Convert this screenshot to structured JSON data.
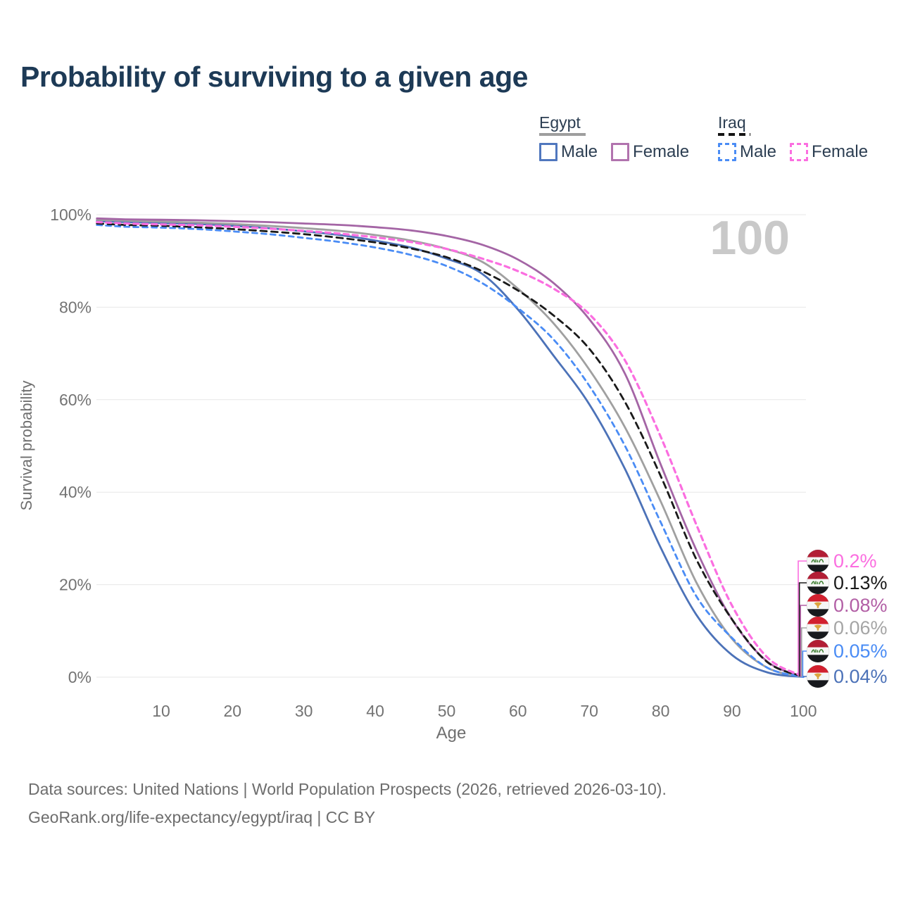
{
  "title": "Probability of surviving to a given age",
  "watermark": "100",
  "legend": {
    "groups": [
      {
        "name": "Egypt",
        "line_style": "solid",
        "underline_color": "#9e9e9e",
        "items": [
          {
            "label": "Male",
            "color": "#5077be"
          },
          {
            "label": "Female",
            "color": "#b173ae"
          }
        ]
      },
      {
        "name": "Iraq",
        "line_style": "dashed",
        "underline_color": "#141414",
        "items": [
          {
            "label": "Male",
            "color": "#4a8cf5"
          },
          {
            "label": "Female",
            "color": "#fb6ee0"
          }
        ]
      }
    ]
  },
  "chart_data": {
    "type": "line",
    "title": "Probability of surviving to a given age",
    "xlabel": "Age",
    "ylabel": "Survival probability",
    "xlim": [
      0,
      100
    ],
    "ylim": [
      0,
      100
    ],
    "grid": true,
    "x_ticks": [
      10,
      20,
      30,
      40,
      50,
      60,
      70,
      80,
      90,
      100
    ],
    "y_ticks": [
      "0%",
      "20%",
      "40%",
      "60%",
      "80%",
      "100%"
    ],
    "ages": [
      1,
      5,
      10,
      15,
      20,
      25,
      30,
      35,
      40,
      45,
      50,
      55,
      60,
      65,
      70,
      75,
      80,
      85,
      90,
      95,
      100
    ],
    "series": [
      {
        "id": "egypt_male",
        "name": "Egypt Male",
        "country": "Egypt",
        "sex": "Male",
        "color": "#4c72b8",
        "dash": "solid",
        "values": [
          98.6,
          98.4,
          98.2,
          98.0,
          97.6,
          97.1,
          96.4,
          95.6,
          94.4,
          92.9,
          90.5,
          87.2,
          79.5,
          69.5,
          59.0,
          45.0,
          28.0,
          13.5,
          4.8,
          1.0,
          0.04
        ],
        "end_label": "0.04%",
        "flag": "egypt"
      },
      {
        "id": "egypt_total",
        "name": "Egypt",
        "country": "Egypt",
        "sex": "Both",
        "color": "#a0a0a0",
        "dash": "solid",
        "values": [
          98.9,
          98.7,
          98.5,
          98.3,
          98.0,
          97.6,
          97.1,
          96.5,
          95.6,
          94.4,
          92.6,
          89.8,
          84.0,
          76.5,
          66.5,
          54.0,
          38.0,
          20.5,
          8.3,
          2.0,
          0.06
        ],
        "end_label": "0.06%",
        "flag": "egypt"
      },
      {
        "id": "egypt_female",
        "name": "Egypt Female",
        "country": "Egypt",
        "sex": "Female",
        "color": "#a465a5",
        "dash": "solid",
        "values": [
          99.2,
          99.0,
          98.9,
          98.8,
          98.6,
          98.4,
          98.1,
          97.8,
          97.3,
          96.6,
          95.4,
          93.5,
          90.3,
          85.2,
          77.4,
          65.6,
          46.0,
          27.5,
          12.5,
          3.3,
          0.08
        ],
        "end_label": "0.08%",
        "flag": "egypt"
      },
      {
        "id": "iraq_male",
        "name": "Iraq Male",
        "country": "Iraq",
        "sex": "Male",
        "color": "#4a8cf5",
        "dash": "dashed",
        "values": [
          97.8,
          97.4,
          97.2,
          96.9,
          96.4,
          95.8,
          95.0,
          94.1,
          92.9,
          91.3,
          88.9,
          85.2,
          79.8,
          73.0,
          63.0,
          50.0,
          33.5,
          17.5,
          8.5,
          2.0,
          0.05
        ],
        "end_label": "0.05%",
        "flag": "iraq"
      },
      {
        "id": "iraq_total",
        "name": "Iraq",
        "country": "Iraq",
        "sex": "Both",
        "color": "#1a1a1a",
        "dash": "dashed",
        "values": [
          98.1,
          97.8,
          97.6,
          97.3,
          96.9,
          96.4,
          95.8,
          95.0,
          94.0,
          92.7,
          90.8,
          87.8,
          83.6,
          78.2,
          71.0,
          59.5,
          43.5,
          25.5,
          12.5,
          3.2,
          0.13
        ],
        "end_label": "0.13%",
        "flag": "iraq"
      },
      {
        "id": "iraq_female",
        "name": "Iraq Female",
        "country": "Iraq",
        "sex": "Female",
        "color": "#fb6ee0",
        "dash": "dashed",
        "values": [
          98.4,
          98.1,
          97.9,
          97.7,
          97.4,
          97.0,
          96.5,
          95.9,
          95.1,
          94.1,
          92.6,
          90.5,
          87.8,
          84.0,
          78.5,
          68.5,
          52.0,
          33.0,
          15.5,
          4.2,
          0.2
        ],
        "end_label": "0.2%",
        "flag": "iraq"
      }
    ],
    "end_label_order": [
      "iraq_female",
      "iraq_total",
      "egypt_female",
      "egypt_total",
      "iraq_male",
      "egypt_male"
    ],
    "end_label_colors": {
      "iraq_female": "#fb6ee0",
      "iraq_total": "#1a1a1a",
      "egypt_female": "#b25fa5",
      "egypt_total": "#a5a5a5",
      "iraq_male": "#4a8cf5",
      "egypt_male": "#4c72b8"
    },
    "legend_position": "top-right"
  },
  "footer": {
    "line1": "Data sources: United Nations | World Population Prospects (2026, retrieved 2026-03-10).",
    "line2": "GeoRank.org/life-expectancy/egypt/iraq | CC BY"
  }
}
